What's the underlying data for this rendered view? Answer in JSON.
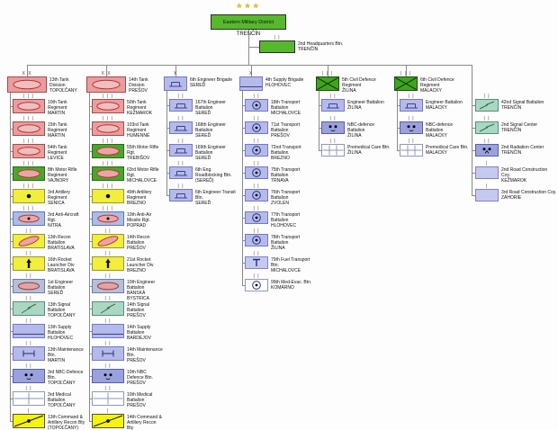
{
  "diagram": {
    "root": {
      "stars": "★★★",
      "name": "Eastern Military District",
      "place": "TRENČÍN",
      "type": "hq"
    },
    "hq": {
      "name": "2nd Headquarters Btn.",
      "place": "TRENČÍN",
      "echelon": "II",
      "type": "hq"
    },
    "columns": [
      {
        "header": {
          "name": "13th Tank Division",
          "place": "TOPOĽČANY",
          "echelon": "XX",
          "type": "armor"
        },
        "units": [
          {
            "name": "10th Tank Regiment",
            "place": "MARTIN",
            "echelon": "III",
            "type": "armor"
          },
          {
            "name": "15th Tank Regiment",
            "place": "MARTIN",
            "echelon": "III",
            "type": "armor"
          },
          {
            "name": "54th Tank Regiment",
            "place": "LEVICE",
            "echelon": "III",
            "type": "armor"
          },
          {
            "name": "8th Motor Rifle Regiment",
            "place": "VAJNORY",
            "echelon": "III",
            "type": "motor-rifle"
          },
          {
            "name": "3rd Artillery Regiment",
            "place": "SENICA",
            "echelon": "III",
            "type": "artillery"
          },
          {
            "name": "3rd Anti-Aircraft Rgt.",
            "place": "NITRA",
            "echelon": "III",
            "type": "anti-air"
          },
          {
            "name": "13th Recon Battalion",
            "place": "BRATISLAVA",
            "echelon": "II",
            "type": "recon"
          },
          {
            "name": "16th Rocket Launcher Div",
            "place": "BRATISLAVA",
            "echelon": "II",
            "type": "rocket"
          },
          {
            "name": "1st Engineer Battalion",
            "place": "SEREĎ",
            "echelon": "II",
            "type": "engineer"
          },
          {
            "name": "13th Signal Battalion",
            "place": "TOPOĽČANY",
            "echelon": "II",
            "type": "signal"
          },
          {
            "name": "13th Supply Battalion",
            "place": "HLOHOVEC",
            "echelon": "II",
            "type": "supply"
          },
          {
            "name": "13th Maintenance Btn.",
            "place": "MARTIN",
            "echelon": "II",
            "type": "maintenance"
          },
          {
            "name": "3rd NBC-Defence Btn.",
            "place": "TOPOĽČANY",
            "echelon": "II",
            "type": "nbc"
          },
          {
            "name": "3rd Medical Battalion",
            "place": "TOPOĽČANY",
            "echelon": "II",
            "type": "medical"
          },
          {
            "name": "13th Command & Artillery Recon Bty",
            "place": "(TOPOĽČANY)",
            "echelon": "I",
            "type": "cmd-recon"
          }
        ]
      },
      {
        "header": {
          "name": "14th Tank Division",
          "place": "PREŠOV",
          "echelon": "XX",
          "type": "armor"
        },
        "units": [
          {
            "name": "50th Tank Regiment",
            "place": "KEŽMAROK",
            "echelon": "III",
            "type": "armor"
          },
          {
            "name": "103rd Tank Regiment",
            "place": "HUMENNÉ",
            "echelon": "III",
            "type": "armor"
          },
          {
            "name": "55th Motor Rifle Rgt.",
            "place": "TREBIŠOV",
            "echelon": "III",
            "type": "motor-rifle"
          },
          {
            "name": "63rd Motor Rifle Rgt.",
            "place": "MICHALOVCE",
            "echelon": "III",
            "type": "motor-rifle"
          },
          {
            "name": "49th Artillery Regiment",
            "place": "BREZNO",
            "echelon": "III",
            "type": "artillery"
          },
          {
            "name": "10th Anti-Air Missile Rgt.",
            "place": "POPRAD",
            "echelon": "III",
            "type": "anti-air"
          },
          {
            "name": "14th Recon Battalion",
            "place": "PREŠOV",
            "echelon": "II",
            "type": "recon"
          },
          {
            "name": "21st Rocket Launcher Div",
            "place": "BREZNO",
            "echelon": "II",
            "type": "rocket"
          },
          {
            "name": "10th Engineer Battalion",
            "place": "BANSKÁ BYSTRICA",
            "echelon": "II",
            "type": "engineer"
          },
          {
            "name": "14th Signal Battalion",
            "place": "PREŠOV",
            "echelon": "II",
            "type": "signal"
          },
          {
            "name": "14th Supply Battalion",
            "place": "BARDEJOV",
            "echelon": "II",
            "type": "supply"
          },
          {
            "name": "14th Maintenance Btn.",
            "place": "PREŠOV",
            "echelon": "II",
            "type": "maintenance"
          },
          {
            "name": "10th NBC Defence Btn.",
            "place": "PREŠOV",
            "echelon": "II",
            "type": "nbc"
          },
          {
            "name": "10th Medical Battalion",
            "place": "PREŠOV",
            "echelon": "II",
            "type": "medical"
          },
          {
            "name": "14th Command & Artillery Recon Bty",
            "place": "(PREŠOV)",
            "echelon": "I",
            "type": "cmd-recon"
          }
        ]
      },
      {
        "header": {
          "name": "6th Engineer Brigade",
          "place": "SEREĎ",
          "echelon": "X",
          "type": "bridge"
        },
        "units": [
          {
            "name": "167th Engineer Battalion",
            "place": "SEREĎ",
            "echelon": "II",
            "type": "bridge"
          },
          {
            "name": "168th Engineer Battalion",
            "place": "SEREĎ",
            "echelon": "II",
            "type": "bridge"
          },
          {
            "name": "169th Engineer Battalion",
            "place": "SEREĎ",
            "echelon": "II",
            "type": "bridge"
          },
          {
            "name": "6th Eng. Roadblocking Btn.",
            "place": "(SEREĎ)",
            "echelon": "II",
            "type": "bridge"
          },
          {
            "name": "6th Engineer Transit Btn.",
            "place": "SEREĎ",
            "echelon": "II",
            "type": "bridge"
          }
        ]
      },
      {
        "header": {
          "name": "4th Supply Brigade",
          "place": "HLOHOVEC",
          "echelon": "X",
          "type": "supply"
        },
        "units": [
          {
            "name": "18th Transport Battalion",
            "place": "MICHALOVCE",
            "echelon": "II",
            "type": "transport"
          },
          {
            "name": "71st Transport Battalion",
            "place": "PREŠOV",
            "echelon": "II",
            "type": "transport"
          },
          {
            "name": "72nd Transport Battalion",
            "place": "BREZNO",
            "echelon": "II",
            "type": "transport"
          },
          {
            "name": "75th Transport Battalion",
            "place": "TRNAVA",
            "echelon": "II",
            "type": "transport"
          },
          {
            "name": "76th Transport Battalion",
            "place": "ZVOLEN",
            "echelon": "II",
            "type": "transport"
          },
          {
            "name": "77th Transport Battalion",
            "place": "HLOHOVEC",
            "echelon": "II",
            "type": "transport"
          },
          {
            "name": "78th Transport Battalion",
            "place": "ŽILINA",
            "echelon": "II",
            "type": "transport"
          },
          {
            "name": "79th Fuel Transport Btn.",
            "place": "MICHALOVCE",
            "echelon": "II",
            "type": "fuel"
          },
          {
            "name": "99th Med-Evac. Btn.",
            "place": "KOMÁRNO",
            "echelon": "II",
            "type": "medevac"
          }
        ]
      },
      {
        "header": {
          "name": "5th Civil Defence Regiment",
          "place": "ŽILINA",
          "echelon": "III",
          "type": "civil-defence"
        },
        "units": [
          {
            "name": "Engineer Battalion",
            "place": "ŽILINA",
            "echelon": "II",
            "type": "bridge"
          },
          {
            "name": "NBC-defence Battalion",
            "place": "ŽILINA",
            "echelon": "II",
            "type": "nbc"
          },
          {
            "name": "Premedical Care Btn.",
            "place": "ŽILINA",
            "echelon": "II",
            "type": "premedical"
          }
        ]
      },
      {
        "header": {
          "name": "6th Civil Defence Regiment",
          "place": "MALACKY",
          "echelon": "III",
          "type": "civil-defence"
        },
        "units": [
          {
            "name": "Engineer Battalion",
            "place": "MALACKY",
            "echelon": "II",
            "type": "bridge"
          },
          {
            "name": "NBC-defence Battalion",
            "place": "MALACKY",
            "echelon": "II",
            "type": "nbc"
          },
          {
            "name": "Premedical Care Btn.",
            "place": "MALACKY",
            "echelon": "II",
            "type": "premedical"
          }
        ]
      },
      {
        "header": null,
        "units": [
          {
            "name": "42nd Signal Battalion",
            "place": "TRENČÍN",
            "echelon": "II",
            "type": "signal"
          },
          {
            "name": "2nd Signal Center",
            "place": "TRENČÍN",
            "echelon": "II",
            "type": "signal"
          },
          {
            "name": "2nd Radiation Center",
            "place": "TRENČÍN",
            "echelon": "II",
            "type": "radiation"
          },
          {
            "name": "2nd Road Construction Coy.",
            "place": "KEŽMAROK",
            "echelon": "I",
            "type": "road"
          },
          {
            "name": "3rd Road Construction Coy.",
            "place": "ZÁHORIE",
            "echelon": "I",
            "type": "road"
          }
        ]
      }
    ]
  },
  "palette": {
    "armor_bg": "#e99e9e",
    "armor_border": "#a34a4a",
    "oval_red": "#c03232",
    "motor_rifle_bg": "#4ca52e",
    "yellow_bg": "#f1ee3c",
    "anti_air_bg": "#a9bde6",
    "lavender_bg": "#b6baea",
    "nbc_bg": "#9ba1dc",
    "signal_bg": "#abd7c2",
    "engineer_bg": "#b3c0da",
    "white_bg": "#ffffff",
    "fuel_road_bg": "#c6c9ee",
    "civil_defence_bg": "#3fa51f",
    "hq_green_bg": "#57b82c",
    "connector": "#8a8a8a",
    "stars": "#e6c619"
  }
}
